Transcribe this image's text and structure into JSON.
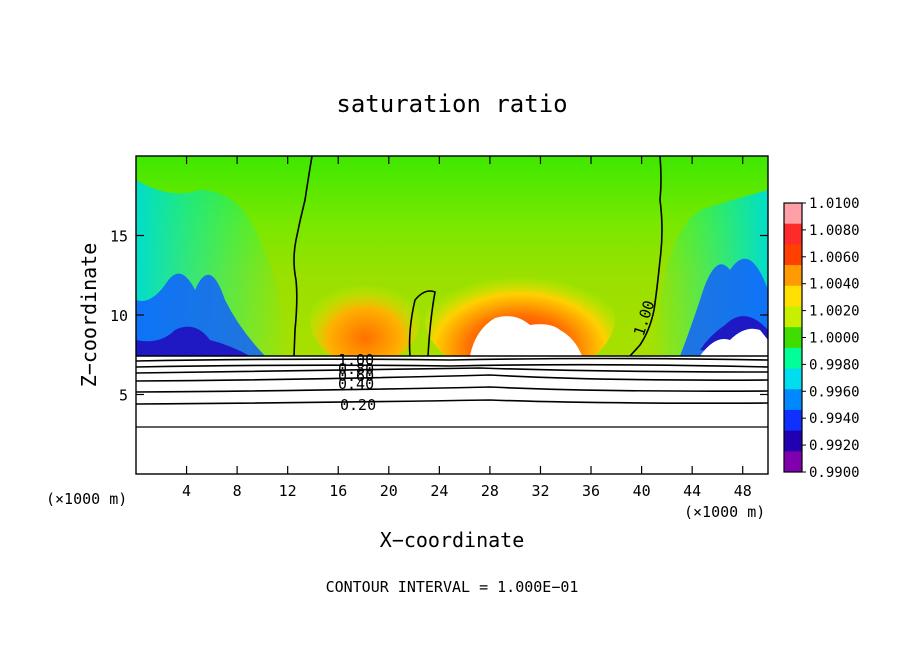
{
  "chart_data": {
    "type": "heatmap",
    "title": "saturation ratio",
    "xlabel": "X−coordinate",
    "ylabel": "Z−coordinate",
    "x_unit_left": "(×1000 m)",
    "x_unit_right": "(×1000 m)",
    "footer": "CONTOUR INTERVAL = 1.000E−01",
    "xlim": [
      0,
      50
    ],
    "ylim": [
      0,
      20
    ],
    "x_ticks": [
      4,
      8,
      12,
      16,
      20,
      24,
      28,
      32,
      36,
      40,
      44,
      48
    ],
    "x_tick_labels": [
      "4",
      "8",
      "12",
      "16",
      "20",
      "24",
      "28",
      "32",
      "36",
      "40",
      "44",
      "48"
    ],
    "y_ticks": [
      5,
      10,
      15
    ],
    "y_tick_labels": [
      "5",
      "10",
      "15"
    ],
    "colorbar": {
      "range": [
        0.99,
        1.01
      ],
      "labels": [
        "1.0100",
        "1.0080",
        "1.0060",
        "1.0040",
        "1.0020",
        "1.0000",
        "0.9980",
        "0.9960",
        "0.9940",
        "0.9920",
        "0.9900"
      ],
      "values": [
        1.01,
        1.008,
        1.006,
        1.004,
        1.002,
        1.0,
        0.998,
        0.996,
        0.994,
        0.992,
        0.99
      ],
      "colors": [
        "#ff9fa8",
        "#ff2a2a",
        "#ff4000",
        "#ff9a00",
        "#ffe000",
        "#c8ee00",
        "#40dd00",
        "#00ff99",
        "#00ddee",
        "#0088ff",
        "#1030ff",
        "#2000b0",
        "#8000b0"
      ]
    },
    "contours": [
      {
        "label": "1.00",
        "value": 1.0
      },
      {
        "label": "1.00",
        "value": 1.0
      },
      {
        "label": "0.80",
        "value": 0.8
      },
      {
        "label": "0.60",
        "value": 0.6
      },
      {
        "label": "0.40",
        "value": 0.4
      },
      {
        "label": "0.20",
        "value": 0.2
      }
    ],
    "contour_label_positions_note": ""
  }
}
